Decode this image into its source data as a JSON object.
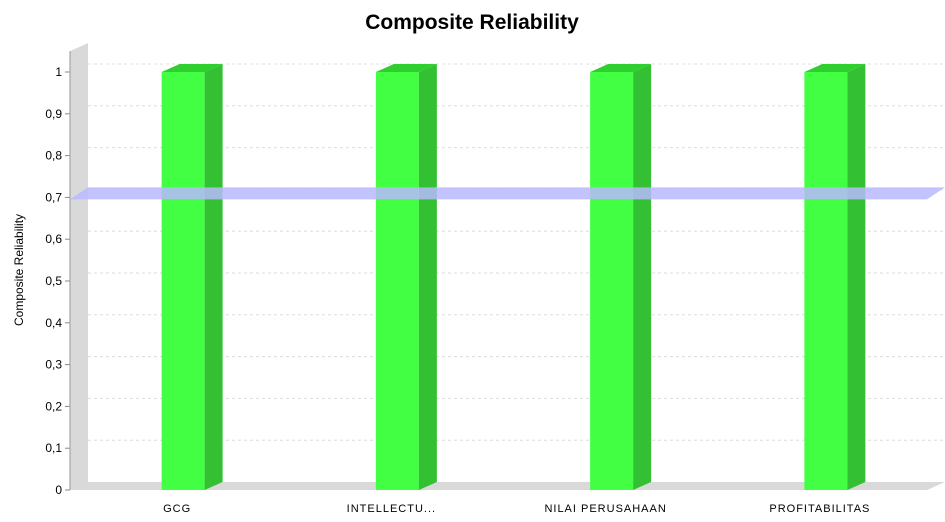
{
  "chart_data": {
    "type": "bar",
    "title": "Composite Reliability",
    "xlabel": "",
    "ylabel": "Composite Reliability",
    "categories": [
      "GCG",
      "INTELLECTU...",
      "NILAI PERUSAHAAN",
      "PROFITABILITAS"
    ],
    "series": [
      {
        "values": [
          1,
          1,
          1,
          1
        ]
      }
    ],
    "ylim": [
      0,
      1.05
    ],
    "yticks": [
      "0",
      "0,1",
      "0,2",
      "0,3",
      "0,4",
      "0,5",
      "0,6",
      "0,7",
      "0,8",
      "0,9",
      "1"
    ],
    "threshold": 0.7,
    "grid": true,
    "legend": "none",
    "colors": {
      "bar_front": "#43ff43",
      "bar_side": "#33c033",
      "bar_top": "#2fcf2f",
      "threshold": "#b8b8ff",
      "wall": "#d9d9d9",
      "grid": "#dddddd"
    }
  }
}
